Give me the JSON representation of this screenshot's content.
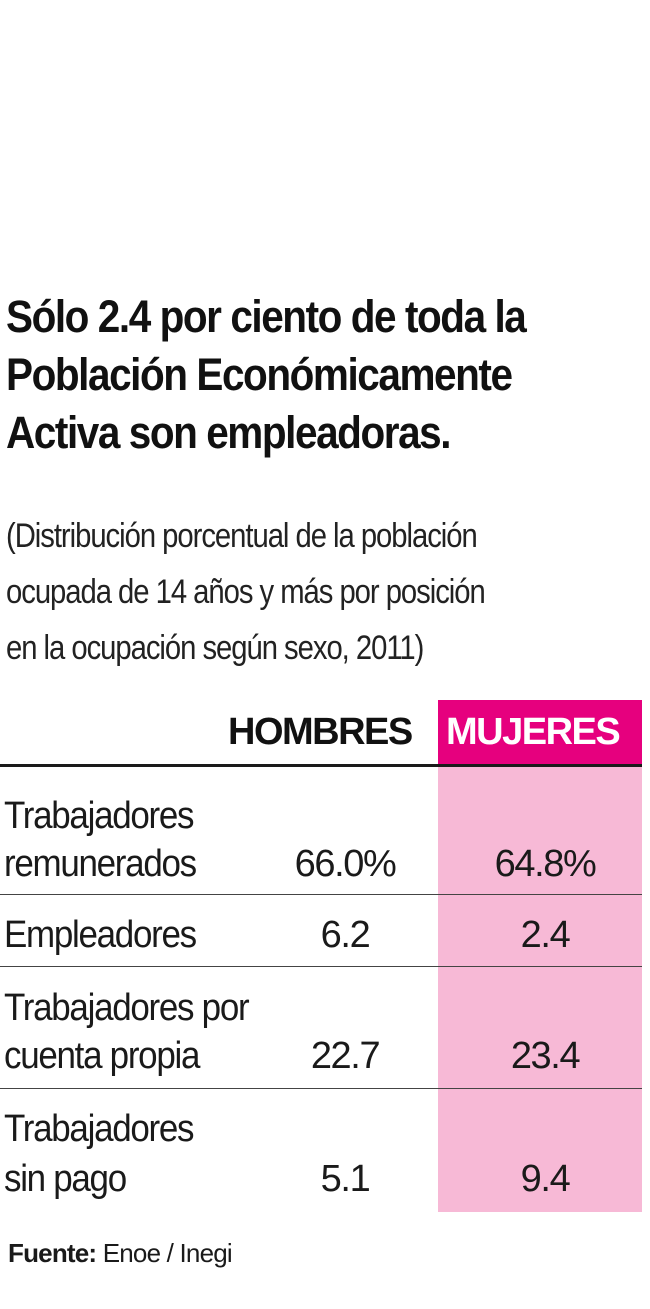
{
  "title_lines": [
    "Sólo 2.4 por ciento de toda la",
    "Población Económicamente",
    "Activa son empleadoras."
  ],
  "subtitle_lines": [
    "(Distribución porcentual de la población",
    "ocupada de 14 años y más por posición",
    "en la ocupación según sexo, 2011)"
  ],
  "colors": {
    "accent": "#e6007e",
    "accent_light": "#f7b9d6",
    "text": "#1a1a1a"
  },
  "chart_data": {
    "type": "table",
    "title": "Sólo 2.4 por ciento de toda la Población Económicamente Activa son empleadoras.",
    "subtitle": "(Distribución porcentual de la población ocupada de 14 años y más por posición en la ocupación según sexo, 2011)",
    "columns": [
      "HOMBRES",
      "MUJERES"
    ],
    "rows": [
      {
        "label_lines": [
          "Trabajadores",
          "remunerados"
        ],
        "hombres": "66.0%",
        "mujeres": "64.8%"
      },
      {
        "label_lines": [
          "Empleadores"
        ],
        "hombres": "6.2",
        "mujeres": "2.4"
      },
      {
        "label_lines": [
          "Trabajadores por",
          "cuenta propia"
        ],
        "hombres": "22.7",
        "mujeres": "23.4"
      },
      {
        "label_lines": [
          "Trabajadores",
          "sin pago"
        ],
        "hombres": "5.1",
        "mujeres": "9.4"
      }
    ],
    "series": [
      {
        "name": "HOMBRES",
        "values": [
          66.0,
          6.2,
          22.7,
          5.1
        ]
      },
      {
        "name": "MUJERES",
        "values": [
          64.8,
          2.4,
          23.4,
          9.4
        ]
      }
    ],
    "categories": [
      "Trabajadores remunerados",
      "Empleadores",
      "Trabajadores por cuenta propia",
      "Trabajadores sin pago"
    ]
  },
  "source": {
    "label": "Fuente:",
    "text": " Enoe / Inegi"
  }
}
